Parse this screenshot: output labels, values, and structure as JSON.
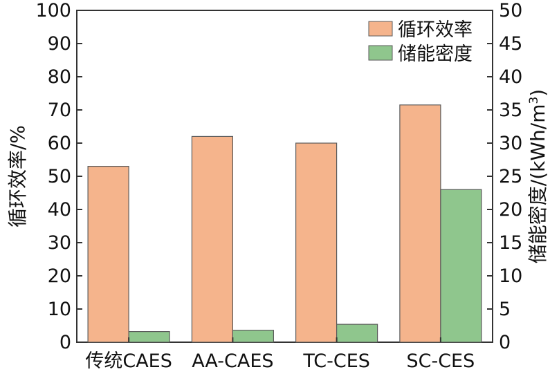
{
  "chart_data": {
    "type": "bar",
    "categories": [
      "传统CAES",
      "AA-CAES",
      "TC-CES",
      "SC-CES"
    ],
    "series": [
      {
        "name": "循环效率",
        "axis": "left",
        "color": "#F5B48C",
        "values": [
          53,
          62,
          60,
          71.5
        ]
      },
      {
        "name": "储能密度",
        "axis": "right",
        "color": "#8FC68D",
        "values": [
          1.6,
          1.8,
          2.7,
          23
        ]
      }
    ],
    "ylabel": "循环效率/%",
    "ylabel_right": "储能密度/(kWh/m",
    "ylabel_right_sup": "3",
    "ylabel_right_end": ")",
    "ylim": [
      0,
      100
    ],
    "ylim_right": [
      0,
      50
    ],
    "yticks": [
      "0",
      "10",
      "20",
      "30",
      "40",
      "50",
      "60",
      "70",
      "80",
      "90",
      "100"
    ],
    "yticks_right": [
      "0",
      "5",
      "10",
      "15",
      "20",
      "25",
      "30",
      "35",
      "40",
      "45",
      "50"
    ],
    "legend_position": "top-right",
    "grid": false,
    "bar_edge_color": "#5a5a5a"
  }
}
